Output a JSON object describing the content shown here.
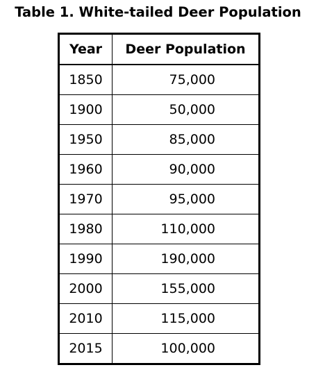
{
  "chart_data": {
    "type": "table",
    "title": "Table 1. White-tailed Deer Population",
    "columns": [
      "Year",
      "Deer Population"
    ],
    "rows": [
      [
        "1850",
        "75,000"
      ],
      [
        "1900",
        "50,000"
      ],
      [
        "1950",
        "85,000"
      ],
      [
        "1960",
        "90,000"
      ],
      [
        "1970",
        "95,000"
      ],
      [
        "1980",
        "110,000"
      ],
      [
        "1990",
        "190,000"
      ],
      [
        "2000",
        "155,000"
      ],
      [
        "2010",
        "115,000"
      ],
      [
        "2015",
        "100,000"
      ]
    ]
  }
}
